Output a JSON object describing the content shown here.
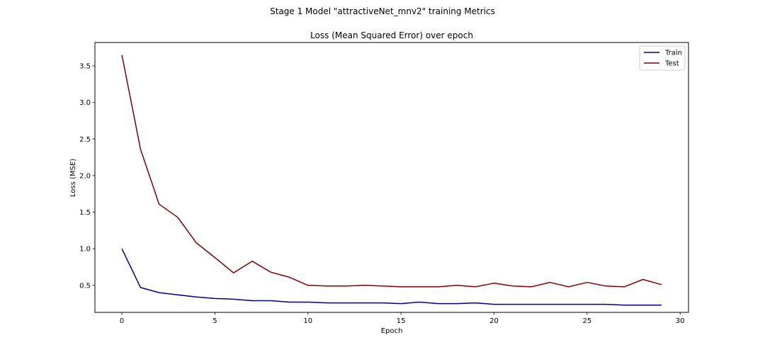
{
  "figure": {
    "suptitle": "Stage 1 Model \"attractiveNet_mnv2\" training Metrics"
  },
  "chart_data": {
    "type": "line",
    "title": "Loss (Mean Squared Error) over epoch",
    "xlabel": "Epoch",
    "ylabel": "Loss (MSE)",
    "xlim": [
      -1.45,
      30.45
    ],
    "ylim": [
      0.13,
      3.82
    ],
    "xticks": [
      0,
      5,
      10,
      15,
      20,
      25,
      30
    ],
    "yticks": [
      0.5,
      1.0,
      1.5,
      2.0,
      2.5,
      3.0,
      3.5
    ],
    "grid": false,
    "legend_position": "top-right",
    "x": [
      0,
      1,
      2,
      3,
      4,
      5,
      6,
      7,
      8,
      9,
      10,
      11,
      12,
      13,
      14,
      15,
      16,
      17,
      18,
      19,
      20,
      21,
      22,
      23,
      24,
      25,
      26,
      27,
      28,
      29
    ],
    "series": [
      {
        "name": "Train",
        "color": "#00007f",
        "values": [
          1.0,
          0.47,
          0.4,
          0.37,
          0.34,
          0.32,
          0.31,
          0.29,
          0.29,
          0.27,
          0.27,
          0.26,
          0.26,
          0.26,
          0.26,
          0.25,
          0.27,
          0.25,
          0.25,
          0.26,
          0.24,
          0.24,
          0.24,
          0.24,
          0.24,
          0.24,
          0.24,
          0.23,
          0.23,
          0.23
        ]
      },
      {
        "name": "Test",
        "color": "#7f0000",
        "values": [
          3.65,
          2.36,
          1.61,
          1.43,
          1.08,
          0.88,
          0.67,
          0.83,
          0.68,
          0.61,
          0.5,
          0.49,
          0.49,
          0.5,
          0.49,
          0.48,
          0.48,
          0.48,
          0.5,
          0.48,
          0.53,
          0.49,
          0.48,
          0.54,
          0.48,
          0.54,
          0.49,
          0.48,
          0.58,
          0.51
        ]
      }
    ]
  }
}
